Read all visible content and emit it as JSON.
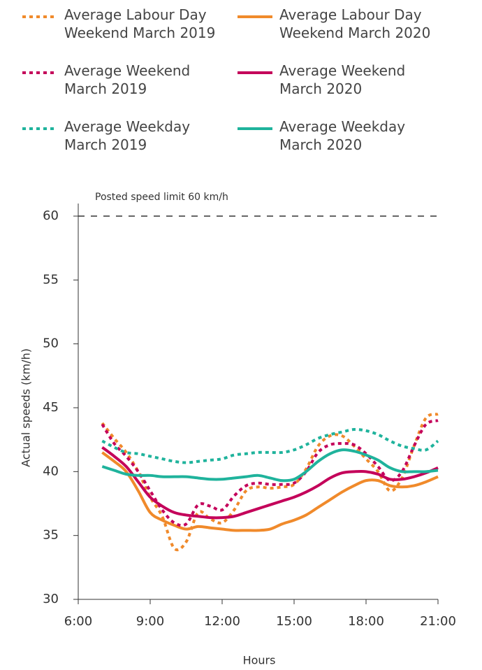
{
  "chart_data": {
    "type": "line",
    "x_label": "Hours",
    "y_label": "Actual speeds (km/h)",
    "reference_line": {
      "value": 60,
      "label": "Posted speed limit 60 km/h"
    },
    "xlim": [
      6,
      21
    ],
    "xticks": [
      {
        "value": 6,
        "label": "6:00"
      },
      {
        "value": 9,
        "label": "9:00"
      },
      {
        "value": 12,
        "label": "12:00"
      },
      {
        "value": 15,
        "label": "15:00"
      },
      {
        "value": 18,
        "label": "18:00"
      },
      {
        "value": 21,
        "label": "21:00"
      }
    ],
    "ylim": [
      30,
      60
    ],
    "yticks": [
      30,
      35,
      40,
      45,
      50,
      55,
      60
    ],
    "x": [
      7,
      7.5,
      8,
      8.5,
      9,
      9.5,
      10,
      10.5,
      11,
      11.5,
      12,
      12.5,
      13,
      13.5,
      14,
      14.5,
      15,
      15.5,
      16,
      16.5,
      17,
      17.5,
      18,
      18.5,
      19,
      19.5,
      20,
      20.5,
      21
    ],
    "series": [
      {
        "name": "Average Labour Day Weekend March 2019",
        "color": "#f08a2b",
        "style": "dotted",
        "values": [
          43.8,
          42.6,
          41.5,
          40,
          38,
          36.5,
          34,
          34.5,
          36.8,
          36.3,
          36,
          37,
          38.5,
          38.8,
          38.7,
          38.8,
          39,
          40.2,
          42,
          42.8,
          42.8,
          42,
          41,
          40,
          38.5,
          39.5,
          42,
          44.2,
          44.5
        ]
      },
      {
        "name": "Average Labour Day Weekend March 2020",
        "color": "#f08a2b",
        "style": "solid",
        "values": [
          41.5,
          40.8,
          40,
          38.5,
          36.8,
          36.2,
          35.8,
          35.5,
          35.7,
          35.6,
          35.5,
          35.4,
          35.4,
          35.4,
          35.5,
          35.9,
          36.2,
          36.6,
          37.2,
          37.8,
          38.4,
          38.9,
          39.3,
          39.3,
          38.9,
          38.8,
          38.9,
          39.2,
          39.6
        ]
      },
      {
        "name": "Average Weekend March 2019",
        "color": "#c4005a",
        "style": "dotted",
        "values": [
          43.7,
          42.2,
          41.2,
          40,
          38.5,
          37,
          36,
          35.9,
          37.4,
          37.3,
          37,
          38.1,
          38.9,
          39.1,
          39,
          39,
          39.1,
          40,
          41.5,
          42.1,
          42.2,
          42.1,
          41.4,
          40.4,
          39.3,
          40,
          42,
          43.7,
          44
        ]
      },
      {
        "name": "Average Weekend March 2020",
        "color": "#c4005a",
        "style": "solid",
        "values": [
          41.9,
          41.2,
          40.4,
          39.2,
          38,
          37.3,
          36.8,
          36.6,
          36.5,
          36.4,
          36.4,
          36.5,
          36.8,
          37.1,
          37.4,
          37.7,
          38,
          38.4,
          38.9,
          39.5,
          39.9,
          40,
          40,
          39.8,
          39.4,
          39.4,
          39.6,
          39.9,
          40.3
        ]
      },
      {
        "name": "Average Weekday March 2019",
        "color": "#1fb39c",
        "style": "dotted",
        "values": [
          42.4,
          41.9,
          41.5,
          41.4,
          41.2,
          41,
          40.8,
          40.7,
          40.8,
          40.9,
          41,
          41.3,
          41.4,
          41.5,
          41.5,
          41.5,
          41.7,
          42.1,
          42.6,
          42.9,
          43.1,
          43.3,
          43.2,
          42.9,
          42.4,
          42,
          41.8,
          41.7,
          42.4
        ]
      },
      {
        "name": "Average Weekday March 2020",
        "color": "#1fb39c",
        "style": "solid",
        "values": [
          40.4,
          40.1,
          39.8,
          39.7,
          39.7,
          39.6,
          39.6,
          39.6,
          39.5,
          39.4,
          39.4,
          39.5,
          39.6,
          39.7,
          39.5,
          39.3,
          39.4,
          40,
          40.8,
          41.4,
          41.7,
          41.6,
          41.3,
          40.9,
          40.3,
          40,
          40,
          40,
          40.1
        ]
      }
    ]
  }
}
